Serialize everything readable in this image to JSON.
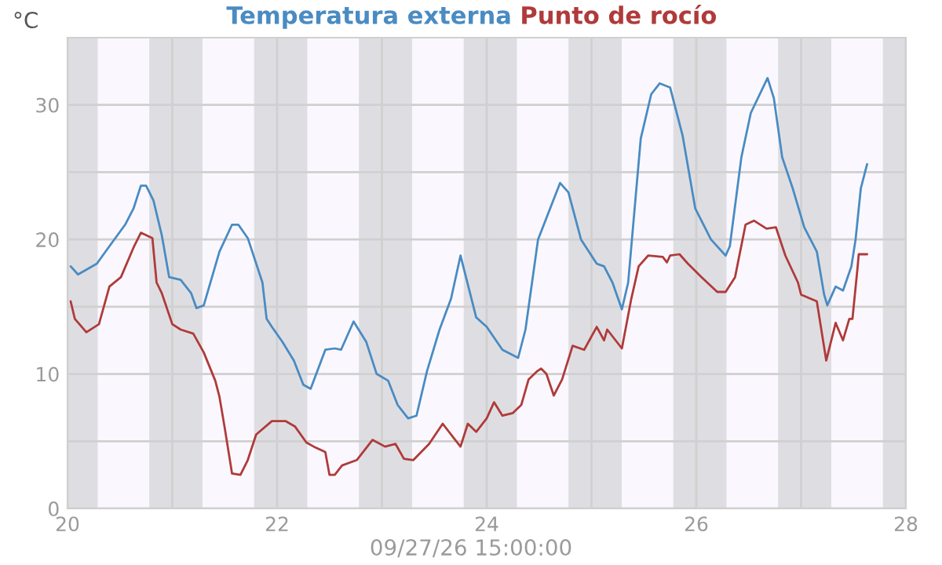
{
  "chart_data": {
    "type": "line",
    "ylabel": "°C",
    "legend": "top",
    "grid": true,
    "marker": "none",
    "line_style": "solid",
    "xlim": [
      20,
      28
    ],
    "xticks": [
      20,
      {
        "value": 21,
        "label": null
      },
      22,
      {
        "value": 23,
        "label": null
      },
      24,
      {
        "value": 25,
        "label": null
      },
      26,
      {
        "value": 27,
        "label": null
      },
      28
    ],
    "ylim": [
      0,
      35
    ],
    "yticks": [
      0,
      {
        "value": 5,
        "label": null
      },
      10,
      {
        "value": 15,
        "label": null
      },
      20,
      {
        "value": 25,
        "label": null
      },
      30
    ],
    "annotations": [
      "09/27/26 15:00:00"
    ],
    "bands": [
      {
        "axis": "x",
        "from": 20,
        "to": 20.29,
        "color": "#dedee2"
      },
      {
        "axis": "x",
        "from": 20.29,
        "to": 20.78,
        "color": "#faf8fe"
      },
      {
        "axis": "x",
        "from": 20.78,
        "to": 21.29,
        "color": "#dedee2"
      },
      {
        "axis": "x",
        "from": 21.29,
        "to": 21.78,
        "color": "#faf8fe"
      },
      {
        "axis": "x",
        "from": 21.78,
        "to": 22.29,
        "color": "#dedee2"
      },
      {
        "axis": "x",
        "from": 22.29,
        "to": 22.78,
        "color": "#faf8fe"
      },
      {
        "axis": "x",
        "from": 22.78,
        "to": 23.29,
        "color": "#dedee2"
      },
      {
        "axis": "x",
        "from": 23.29,
        "to": 23.78,
        "color": "#faf8fe"
      },
      {
        "axis": "x",
        "from": 23.78,
        "to": 24.29,
        "color": "#dedee2"
      },
      {
        "axis": "x",
        "from": 24.29,
        "to": 24.78,
        "color": "#faf8fe"
      },
      {
        "axis": "x",
        "from": 24.78,
        "to": 25.29,
        "color": "#dedee2"
      },
      {
        "axis": "x",
        "from": 25.29,
        "to": 25.78,
        "color": "#faf8fe"
      },
      {
        "axis": "x",
        "from": 25.78,
        "to": 26.29,
        "color": "#dedee2"
      },
      {
        "axis": "x",
        "from": 26.29,
        "to": 26.78,
        "color": "#faf8fe"
      },
      {
        "axis": "x",
        "from": 26.78,
        "to": 27.29,
        "color": "#dedee2"
      },
      {
        "axis": "x",
        "from": 27.29,
        "to": 27.78,
        "color": "#faf8fe"
      },
      {
        "axis": "x",
        "from": 27.78,
        "to": 28,
        "color": "#dedee2"
      }
    ],
    "series": [
      {
        "name": "Temperatura externa",
        "color": "#4a8bc2",
        "x": [
          20.03,
          20.1,
          20.28,
          20.4,
          20.55,
          20.63,
          20.7,
          20.75,
          20.82,
          20.9,
          20.97,
          21.08,
          21.18,
          21.23,
          21.3,
          21.45,
          21.57,
          21.63,
          21.72,
          21.86,
          21.9,
          21.95,
          22.05,
          22.16,
          22.25,
          22.32,
          22.46,
          22.55,
          22.61,
          22.73,
          22.85,
          22.95,
          23.06,
          23.15,
          23.25,
          23.33,
          23.43,
          23.55,
          23.66,
          23.75,
          23.9,
          24.0,
          24.15,
          24.3,
          24.37,
          24.49,
          24.7,
          24.78,
          24.9,
          25.05,
          25.12,
          25.2,
          25.29,
          25.35,
          25.47,
          25.57,
          25.65,
          25.75,
          25.87,
          25.99,
          26.14,
          26.28,
          26.32,
          26.43,
          26.52,
          26.68,
          26.74,
          26.82,
          26.92,
          27.03,
          27.15,
          27.22,
          27.25,
          27.33,
          27.4,
          27.48,
          27.52,
          27.57,
          27.63
        ],
        "values": [
          18.0,
          17.4,
          18.2,
          19.5,
          21.1,
          22.3,
          24.0,
          24.0,
          22.9,
          20.3,
          17.2,
          17.0,
          16.0,
          14.9,
          15.1,
          19.1,
          21.1,
          21.1,
          20.1,
          16.8,
          14.1,
          13.5,
          12.4,
          11.0,
          9.2,
          8.9,
          11.8,
          11.9,
          11.8,
          13.9,
          12.4,
          10.0,
          9.5,
          7.7,
          6.7,
          6.9,
          10.2,
          13.3,
          15.6,
          18.8,
          14.2,
          13.5,
          11.8,
          11.2,
          13.3,
          20.0,
          24.2,
          23.5,
          20.0,
          18.2,
          18.0,
          16.8,
          14.8,
          16.8,
          27.5,
          30.8,
          31.6,
          31.3,
          27.7,
          22.3,
          20.0,
          18.8,
          19.5,
          26.1,
          29.4,
          32.0,
          30.5,
          26.1,
          23.8,
          20.9,
          19.1,
          15.9,
          15.1,
          16.5,
          16.2,
          18.0,
          20.0,
          23.8,
          25.6
        ]
      },
      {
        "name": "Punto de rocío",
        "color": "#b03a3a",
        "x": [
          20.03,
          20.07,
          20.18,
          20.3,
          20.4,
          20.51,
          20.63,
          20.7,
          20.81,
          20.85,
          20.9,
          21.0,
          21.08,
          21.2,
          21.3,
          21.41,
          21.45,
          21.5,
          21.57,
          21.65,
          21.72,
          21.8,
          21.95,
          22.08,
          22.17,
          22.28,
          22.35,
          22.46,
          22.5,
          22.55,
          22.62,
          22.76,
          22.91,
          23.03,
          23.13,
          23.21,
          23.3,
          23.45,
          23.58,
          23.7,
          23.75,
          23.82,
          23.9,
          24.0,
          24.07,
          24.15,
          24.25,
          24.33,
          24.4,
          24.48,
          24.52,
          24.57,
          24.64,
          24.72,
          24.82,
          24.93,
          25.05,
          25.12,
          25.15,
          25.29,
          25.38,
          25.45,
          25.54,
          25.68,
          25.72,
          25.75,
          25.84,
          25.92,
          26.05,
          26.2,
          26.28,
          26.37,
          26.47,
          26.55,
          26.67,
          26.76,
          26.85,
          26.97,
          27.0,
          27.15,
          27.24,
          27.33,
          27.4,
          27.46,
          27.49,
          27.54,
          27.55,
          27.63
        ],
        "values": [
          15.4,
          14.1,
          13.1,
          13.7,
          16.5,
          17.2,
          19.4,
          20.5,
          20.1,
          16.8,
          16.0,
          13.7,
          13.3,
          13.0,
          11.6,
          9.5,
          8.3,
          6.0,
          2.6,
          2.5,
          3.6,
          5.5,
          6.5,
          6.5,
          6.1,
          4.9,
          4.6,
          4.2,
          2.5,
          2.5,
          3.2,
          3.6,
          5.1,
          4.6,
          4.8,
          3.7,
          3.6,
          4.8,
          6.3,
          5.1,
          4.6,
          6.3,
          5.7,
          6.7,
          7.9,
          6.9,
          7.1,
          7.7,
          9.6,
          10.2,
          10.4,
          10.0,
          8.4,
          9.6,
          12.1,
          11.8,
          13.5,
          12.5,
          13.3,
          11.9,
          15.6,
          18.0,
          18.8,
          18.7,
          18.3,
          18.8,
          18.9,
          18.2,
          17.2,
          16.1,
          16.1,
          17.2,
          21.1,
          21.4,
          20.8,
          20.9,
          18.8,
          16.8,
          15.9,
          15.4,
          11.0,
          13.8,
          12.5,
          14.1,
          14.1,
          18.0,
          18.9,
          18.9
        ]
      }
    ]
  }
}
